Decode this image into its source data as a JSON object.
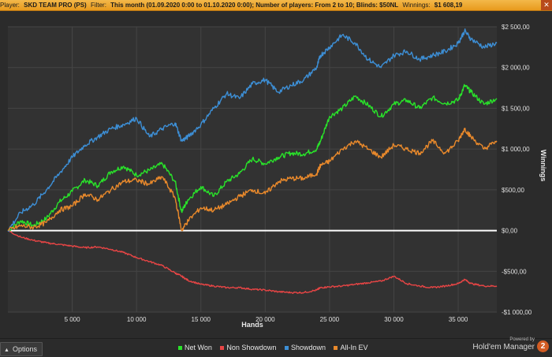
{
  "header": {
    "player_label": "Player:",
    "player_value": "SKD TEAM PRO (PS)",
    "filter_label": "Filter:",
    "filter_value": "This month (01.09.2020 0:00 to 01.10.2020 0:00); Number of players: From 2 to 10; Blinds: $50NL",
    "winnings_label": "Winnings:",
    "winnings_value": "$1 608,19",
    "close_icon": "close-icon"
  },
  "chart_data": {
    "type": "line",
    "xlabel": "Hands",
    "ylabel": "Winnings",
    "xlim": [
      0,
      38000
    ],
    "ylim": [
      -1000,
      2500
    ],
    "x_ticks": [
      5000,
      10000,
      15000,
      20000,
      25000,
      30000,
      35000
    ],
    "x_tick_labels": [
      "5 000",
      "10 000",
      "15 000",
      "20 000",
      "25 000",
      "30 000",
      "35 000"
    ],
    "y_ticks": [
      -1000,
      -500,
      0,
      500,
      1000,
      1500,
      2000,
      2500
    ],
    "y_tick_labels": [
      "-$1 000,00",
      "-$500,00",
      "$0,00",
      "$500,00",
      "$1 000,00",
      "$1 500,00",
      "$2 000,00",
      "$2 500,00"
    ],
    "grid": true,
    "legend_position": "bottom",
    "x": [
      0,
      1000,
      2000,
      3000,
      4000,
      5000,
      6000,
      7000,
      8000,
      9000,
      10000,
      11000,
      12000,
      13000,
      13500,
      14000,
      15000,
      16000,
      17000,
      18000,
      19000,
      20000,
      21000,
      22000,
      23000,
      24000,
      24300,
      25000,
      26000,
      27000,
      28000,
      29000,
      30000,
      31000,
      32000,
      33000,
      34000,
      35000,
      35500,
      36000,
      37000,
      38000
    ],
    "series": [
      {
        "name": "Net Won",
        "color": "#29e32a",
        "values": [
          0,
          120,
          60,
          150,
          350,
          480,
          620,
          550,
          720,
          790,
          680,
          740,
          820,
          600,
          230,
          380,
          540,
          420,
          600,
          700,
          880,
          820,
          900,
          950,
          940,
          1000,
          1100,
          1400,
          1500,
          1650,
          1540,
          1400,
          1550,
          1600,
          1500,
          1630,
          1560,
          1600,
          1780,
          1700,
          1550,
          1620
        ]
      },
      {
        "name": "Non Showdown",
        "color": "#e84545",
        "values": [
          0,
          -80,
          -120,
          -150,
          -170,
          -190,
          -210,
          -200,
          -230,
          -270,
          -330,
          -380,
          -430,
          -520,
          -560,
          -610,
          -660,
          -680,
          -700,
          -700,
          -720,
          -730,
          -750,
          -760,
          -760,
          -730,
          -700,
          -690,
          -680,
          -660,
          -640,
          -620,
          -560,
          -650,
          -680,
          -700,
          -680,
          -650,
          -600,
          -650,
          -680,
          -680
        ]
      },
      {
        "name": "Showdown",
        "color": "#3d8fd6",
        "values": [
          0,
          220,
          320,
          500,
          700,
          900,
          1050,
          1150,
          1250,
          1300,
          1380,
          1150,
          1250,
          1320,
          1100,
          1150,
          1300,
          1500,
          1680,
          1620,
          1800,
          1850,
          1700,
          1780,
          1850,
          2000,
          2150,
          2250,
          2400,
          2300,
          2100,
          2000,
          2150,
          2200,
          2100,
          2150,
          2200,
          2300,
          2450,
          2350,
          2250,
          2300
        ]
      },
      {
        "name": "All-In EV",
        "color": "#e9892b",
        "values": [
          0,
          60,
          40,
          100,
          250,
          300,
          450,
          380,
          500,
          600,
          620,
          570,
          660,
          400,
          0,
          120,
          280,
          250,
          320,
          420,
          500,
          450,
          600,
          640,
          640,
          700,
          800,
          850,
          1000,
          1100,
          1000,
          900,
          1050,
          1000,
          950,
          1100,
          950,
          1100,
          1250,
          1150,
          1000,
          1100
        ]
      }
    ]
  },
  "footer": {
    "options_label": "Options",
    "options_icon": "chevron-up-icon",
    "powered_by": "Powered by",
    "brand_name": "Hold'em Manager",
    "brand_badge": "2"
  }
}
